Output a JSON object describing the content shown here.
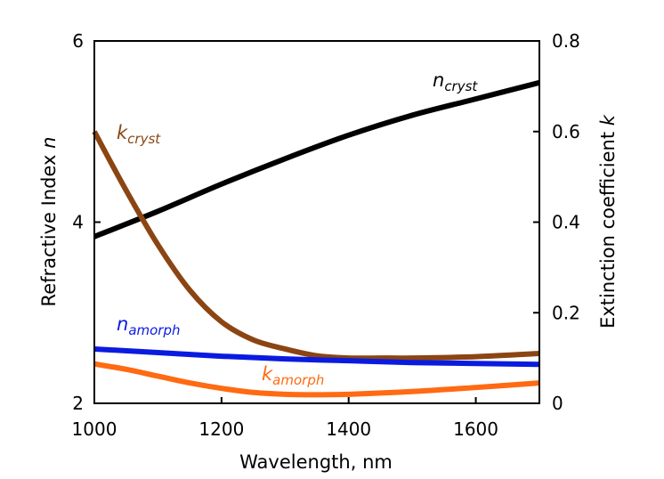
{
  "chart_data": {
    "type": "line",
    "xlabel": "Wavelength, nm",
    "ylabel_left": "Refractive Index",
    "ylabel_left_var": "n",
    "ylabel_right": "Extinction coefficient",
    "ylabel_right_var": "k",
    "xlim": [
      1000,
      1700
    ],
    "ylim_left": [
      2,
      6
    ],
    "ylim_right": [
      0,
      0.8
    ],
    "x_ticks": [
      1000,
      1200,
      1400,
      1600
    ],
    "y_left_ticks": [
      2,
      4,
      6
    ],
    "y_right_ticks": [
      0,
      0.2,
      0.4,
      0.6,
      0.8
    ],
    "y_right_tick_labels": [
      "0",
      "0.2",
      "0.4",
      "0.6",
      "0.8"
    ],
    "grid": false,
    "legend": "none",
    "series": [
      {
        "name_main": "n",
        "name_sub": "cryst",
        "axis": "left",
        "color": "#000000",
        "x": [
          1000,
          1100,
          1200,
          1300,
          1400,
          1500,
          1600,
          1700
        ],
        "y": [
          3.84,
          4.12,
          4.42,
          4.7,
          4.96,
          5.18,
          5.36,
          5.54
        ]
      },
      {
        "name_main": "k",
        "name_sub": "cryst",
        "axis": "right",
        "color": "#8B4513",
        "x": [
          1000,
          1050,
          1100,
          1150,
          1200,
          1250,
          1300,
          1350,
          1400,
          1450,
          1500,
          1600,
          1700
        ],
        "y": [
          0.6,
          0.47,
          0.35,
          0.25,
          0.18,
          0.14,
          0.12,
          0.105,
          0.1,
          0.1,
          0.1,
          0.103,
          0.11
        ]
      },
      {
        "name_main": "n",
        "name_sub": "amorph",
        "axis": "left",
        "color": "#0A1BE0",
        "x": [
          1000,
          1100,
          1200,
          1300,
          1400,
          1500,
          1600,
          1700
        ],
        "y": [
          2.6,
          2.56,
          2.52,
          2.49,
          2.47,
          2.45,
          2.44,
          2.43
        ]
      },
      {
        "name_main": "k",
        "name_sub": "amorph",
        "axis": "right",
        "color": "#FF6A13",
        "x": [
          1000,
          1050,
          1100,
          1150,
          1200,
          1250,
          1300,
          1350,
          1400,
          1500,
          1600,
          1700
        ],
        "y": [
          0.087,
          0.075,
          0.06,
          0.045,
          0.033,
          0.024,
          0.02,
          0.019,
          0.02,
          0.026,
          0.035,
          0.045
        ]
      }
    ]
  }
}
